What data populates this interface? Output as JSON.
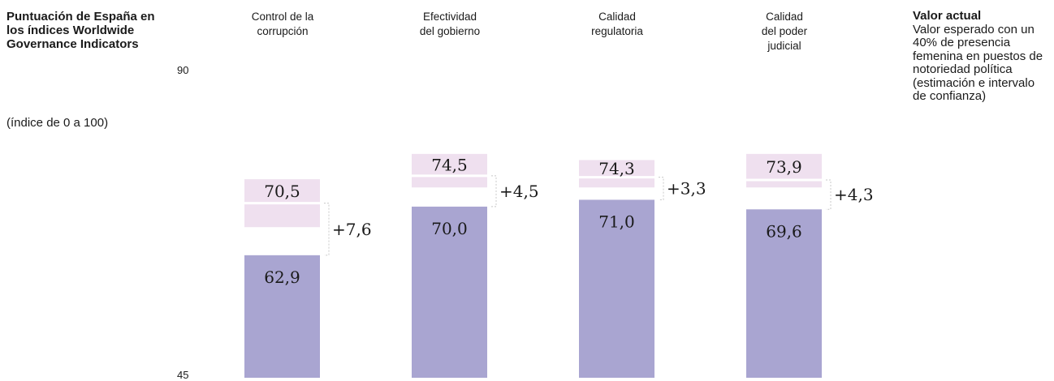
{
  "title": "Puntuación de España en los índices Worldwide Governance Indicators",
  "subtitle": "(índice de 0 a 100)",
  "legend": {
    "actual": "Valor actual",
    "expected": "Valor esperado con un 40% de presencia femenina en puestos de notoriedad política (estimación e intervalo de confianza)"
  },
  "colors": {
    "actual": "#a9a5d1",
    "expected": "#efe0ef",
    "separator": "#ffffff",
    "bracket": "#c8c8c8"
  },
  "chart_data": {
    "type": "bar",
    "ylim": [
      45,
      90
    ],
    "yticks": [
      "90",
      "45"
    ],
    "categories": [
      {
        "lines": [
          "Control de la",
          "corrupción"
        ],
        "actual": 62.9,
        "actual_label": "62,9",
        "expected": 70.5,
        "expected_label": "70,5",
        "ci_low": 67.0,
        "ci_high": 74.0,
        "diff_label": "+7,6"
      },
      {
        "lines": [
          "Efectividad",
          "del gobierno"
        ],
        "actual": 70.0,
        "actual_label": "70,0",
        "expected": 74.5,
        "expected_label": "74,5",
        "ci_low": 72.8,
        "ci_high": 77.7,
        "diff_label": "+4,5"
      },
      {
        "lines": [
          "Calidad",
          "regulatoria"
        ],
        "actual": 71.0,
        "actual_label": "71,0",
        "expected": 74.3,
        "expected_label": "74,3",
        "ci_low": 72.8,
        "ci_high": 76.8,
        "diff_label": "+3,3"
      },
      {
        "lines": [
          "Calidad",
          "del poder",
          "judicial"
        ],
        "actual": 69.6,
        "actual_label": "69,6",
        "expected": 73.9,
        "expected_label": "73,9",
        "ci_low": 72.8,
        "ci_high": 77.7,
        "diff_label": "+4,3"
      }
    ]
  }
}
